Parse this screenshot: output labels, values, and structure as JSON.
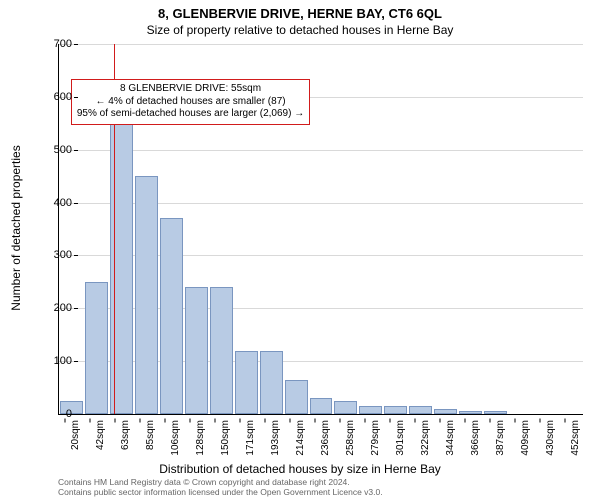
{
  "chart": {
    "type": "histogram",
    "title": "8, GLENBERVIE DRIVE, HERNE BAY, CT6 6QL",
    "subtitle": "Size of property relative to detached houses in Herne Bay",
    "xlabel": "Distribution of detached houses by size in Herne Bay",
    "ylabel": "Number of detached properties",
    "background_color": "#ffffff",
    "grid_color": "#d9d9d9",
    "axis_color": "#000000",
    "bar_fill": "#b8cbe4",
    "bar_edge": "#7a96c0",
    "marker_color": "#d11b1b",
    "annotation_border": "#d11b1b",
    "title_fontsize": 13,
    "subtitle_fontsize": 12,
    "label_fontsize": 12,
    "tick_fontsize": 10,
    "ylim": [
      0,
      700
    ],
    "ytick_step": 100,
    "yticks": [
      0,
      100,
      200,
      300,
      400,
      500,
      600,
      700
    ],
    "x_tick_labels": [
      "20sqm",
      "42sqm",
      "63sqm",
      "85sqm",
      "106sqm",
      "128sqm",
      "150sqm",
      "171sqm",
      "193sqm",
      "214sqm",
      "236sqm",
      "258sqm",
      "279sqm",
      "301sqm",
      "322sqm",
      "344sqm",
      "366sqm",
      "387sqm",
      "409sqm",
      "430sqm",
      "452sqm"
    ],
    "n_bars": 21,
    "values": [
      25,
      250,
      605,
      450,
      370,
      240,
      240,
      120,
      120,
      65,
      30,
      25,
      15,
      15,
      15,
      10,
      5,
      5,
      0,
      0,
      0
    ],
    "marker_x_category_index": 1.7,
    "annotation": {
      "line1": "8 GLENBERVIE DRIVE: 55sqm",
      "line2": "← 4% of detached houses are smaller (87)",
      "line3": "95% of semi-detached houses are larger (2,069) →",
      "top_frac_from_top": 0.095
    },
    "footer_line1": "Contains HM Land Registry data © Crown copyright and database right 2024.",
    "footer_line2": "Contains public sector information licensed under the Open Government Licence v3.0."
  }
}
